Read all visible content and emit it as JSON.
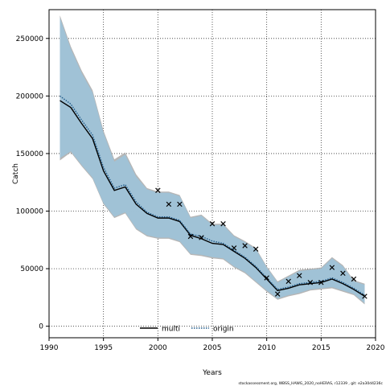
{
  "chart_data": {
    "type": "line",
    "xlabel": "Years",
    "ylabel": "Catch",
    "xlim": [
      1990,
      2020
    ],
    "ylim": [
      -10000,
      275000
    ],
    "xticks": [
      1990,
      1995,
      2000,
      2005,
      2010,
      2015,
      2020
    ],
    "yticks": [
      0,
      50000,
      100000,
      150000,
      200000,
      250000
    ],
    "xtick_labels": [
      "1990",
      "1995",
      "2000",
      "2005",
      "2010",
      "2015",
      "2020"
    ],
    "ytick_labels": [
      "0",
      "50000",
      "100000",
      "150000",
      "200000",
      "250000"
    ],
    "grid": true,
    "legend_position": "bottom-center",
    "footnote": "stockassessment.org, WBSS_HAWG_2020_noHERAS, r12339 , git: e2a30d4236c",
    "colors": {
      "band": "#9fc3d8",
      "band_edge": "#8a9fb0",
      "line": "#000000",
      "origin": "#1f5a8a"
    },
    "x": [
      1991,
      1992,
      1993,
      1994,
      1995,
      1996,
      1997,
      1998,
      1999,
      2000,
      2001,
      2002,
      2003,
      2004,
      2005,
      2006,
      2007,
      2008,
      2009,
      2010,
      2011,
      2012,
      2013,
      2014,
      2015,
      2016,
      2017,
      2018,
      2019
    ],
    "series": [
      {
        "name": "multi",
        "style": "solid",
        "values": [
          196000,
          190000,
          176000,
          163000,
          135000,
          118000,
          121000,
          106000,
          98000,
          94000,
          94000,
          91000,
          79000,
          76000,
          72000,
          71000,
          65000,
          59000,
          51000,
          41000,
          31000,
          33000,
          36000,
          37000,
          38000,
          41000,
          37000,
          32000,
          26000
        ],
        "lower": [
          144000,
          151000,
          139000,
          128000,
          106000,
          94000,
          98000,
          84000,
          78000,
          76000,
          76000,
          73000,
          62000,
          61000,
          59000,
          58000,
          51000,
          46000,
          38000,
          30000,
          23000,
          26000,
          28000,
          31000,
          32000,
          33000,
          30000,
          27000,
          19000
        ],
        "upper": [
          270000,
          243000,
          222000,
          205000,
          170000,
          145000,
          151000,
          132000,
          120000,
          117000,
          117000,
          114000,
          95000,
          97000,
          89000,
          89000,
          79000,
          74000,
          68000,
          52000,
          39000,
          44000,
          49000,
          50000,
          51000,
          60000,
          53000,
          40000,
          37000
        ]
      },
      {
        "name": "origin",
        "style": "dotted",
        "values": [
          200000,
          193000,
          179000,
          166000,
          138000,
          120000,
          123000,
          108000,
          99000,
          95000,
          95000,
          92000,
          80000,
          78000,
          74000,
          72000,
          66000,
          60000,
          52000,
          42000,
          32000,
          34000,
          37000,
          38000,
          39000,
          42000,
          38000,
          33000,
          27000
        ],
        "lower": [
          146000,
          152000,
          140000,
          129000,
          107000,
          95000,
          99000,
          85000,
          79000,
          77000,
          77000,
          74000,
          63000,
          62000,
          60000,
          59000,
          52000,
          47000,
          39000,
          31000,
          24000,
          27000,
          29000,
          32000,
          33000,
          34000,
          31000,
          28000,
          20000
        ],
        "upper": [
          268000,
          241000,
          220000,
          203000,
          168000,
          143000,
          149000,
          130000,
          119000,
          116000,
          116000,
          113000,
          94000,
          96000,
          88000,
          88000,
          78000,
          73000,
          67000,
          51000,
          38000,
          43000,
          48000,
          49000,
          50000,
          59000,
          52000,
          39000,
          36000
        ]
      }
    ],
    "observations": {
      "marker": "x",
      "x": [
        2000,
        2001,
        2002,
        2003,
        2004,
        2005,
        2006,
        2007,
        2008,
        2009,
        2010,
        2011,
        2012,
        2013,
        2014,
        2015,
        2016,
        2017,
        2018,
        2019
      ],
      "y": [
        118000,
        106000,
        106000,
        78000,
        77000,
        89000,
        89000,
        68000,
        70000,
        67000,
        42000,
        28000,
        39000,
        44000,
        38000,
        38000,
        51000,
        46000,
        41000,
        26000
      ]
    }
  }
}
